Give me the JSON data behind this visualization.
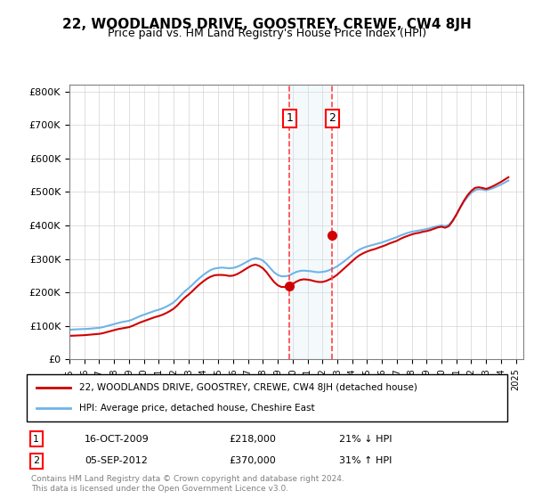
{
  "title": "22, WOODLANDS DRIVE, GOOSTREY, CREWE, CW4 8JH",
  "subtitle": "Price paid vs. HM Land Registry's House Price Index (HPI)",
  "ylabel_ticks": [
    "£0",
    "£100K",
    "£200K",
    "£300K",
    "£400K",
    "£500K",
    "£600K",
    "£700K",
    "£800K"
  ],
  "ytick_values": [
    0,
    100000,
    200000,
    300000,
    400000,
    500000,
    600000,
    700000,
    800000
  ],
  "ylim": [
    0,
    820000
  ],
  "xlim_start": 1995.0,
  "xlim_end": 2025.5,
  "xtick_labels": [
    "1995",
    "1996",
    "1997",
    "1998",
    "1999",
    "2000",
    "2001",
    "2002",
    "2003",
    "2004",
    "2005",
    "2006",
    "2007",
    "2008",
    "2009",
    "2010",
    "2011",
    "2012",
    "2013",
    "2014",
    "2015",
    "2016",
    "2017",
    "2018",
    "2019",
    "2020",
    "2021",
    "2022",
    "2023",
    "2024",
    "2025"
  ],
  "hpi_line_color": "#6eb4e8",
  "price_line_color": "#d00000",
  "marker_color": "#d00000",
  "sale1_date": 2009.79,
  "sale1_price": 218000,
  "sale2_date": 2012.67,
  "sale2_price": 370000,
  "vline1_color": "#ff4444",
  "vline2_color": "#ff4444",
  "shade_color": "#d6e8f7",
  "legend_label1": "22, WOODLANDS DRIVE, GOOSTREY, CREWE, CW4 8JH (detached house)",
  "legend_label2": "HPI: Average price, detached house, Cheshire East",
  "table_row1": [
    "1",
    "16-OCT-2009",
    "£218,000",
    "21% ↓ HPI"
  ],
  "table_row2": [
    "2",
    "05-SEP-2012",
    "£370,000",
    "31% ↑ HPI"
  ],
  "footer": "Contains HM Land Registry data © Crown copyright and database right 2024.\nThis data is licensed under the Open Government Licence v3.0.",
  "hpi_data": {
    "years": [
      1995.0,
      1995.25,
      1995.5,
      1995.75,
      1996.0,
      1996.25,
      1996.5,
      1996.75,
      1997.0,
      1997.25,
      1997.5,
      1997.75,
      1998.0,
      1998.25,
      1998.5,
      1998.75,
      1999.0,
      1999.25,
      1999.5,
      1999.75,
      2000.0,
      2000.25,
      2000.5,
      2000.75,
      2001.0,
      2001.25,
      2001.5,
      2001.75,
      2002.0,
      2002.25,
      2002.5,
      2002.75,
      2003.0,
      2003.25,
      2003.5,
      2003.75,
      2004.0,
      2004.25,
      2004.5,
      2004.75,
      2005.0,
      2005.25,
      2005.5,
      2005.75,
      2006.0,
      2006.25,
      2006.5,
      2006.75,
      2007.0,
      2007.25,
      2007.5,
      2007.75,
      2008.0,
      2008.25,
      2008.5,
      2008.75,
      2009.0,
      2009.25,
      2009.5,
      2009.75,
      2010.0,
      2010.25,
      2010.5,
      2010.75,
      2011.0,
      2011.25,
      2011.5,
      2011.75,
      2012.0,
      2012.25,
      2012.5,
      2012.75,
      2013.0,
      2013.25,
      2013.5,
      2013.75,
      2014.0,
      2014.25,
      2014.5,
      2014.75,
      2015.0,
      2015.25,
      2015.5,
      2015.75,
      2016.0,
      2016.25,
      2016.5,
      2016.75,
      2017.0,
      2017.25,
      2017.5,
      2017.75,
      2018.0,
      2018.25,
      2018.5,
      2018.75,
      2019.0,
      2019.25,
      2019.5,
      2019.75,
      2020.0,
      2020.25,
      2020.5,
      2020.75,
      2021.0,
      2021.25,
      2021.5,
      2021.75,
      2022.0,
      2022.25,
      2022.5,
      2022.75,
      2023.0,
      2023.25,
      2023.5,
      2023.75,
      2024.0,
      2024.25,
      2024.5
    ],
    "values": [
      88000,
      89000,
      89500,
      90000,
      90500,
      91000,
      92000,
      93000,
      94000,
      96000,
      99000,
      102000,
      105000,
      108000,
      111000,
      113000,
      115000,
      119000,
      124000,
      129000,
      133000,
      137000,
      141000,
      145000,
      148000,
      152000,
      157000,
      163000,
      170000,
      180000,
      192000,
      203000,
      212000,
      222000,
      233000,
      243000,
      252000,
      260000,
      267000,
      271000,
      273000,
      274000,
      273000,
      272000,
      273000,
      276000,
      281000,
      287000,
      293000,
      299000,
      302000,
      300000,
      295000,
      285000,
      272000,
      260000,
      252000,
      248000,
      248000,
      250000,
      256000,
      261000,
      264000,
      265000,
      264000,
      263000,
      261000,
      260000,
      261000,
      263000,
      267000,
      272000,
      278000,
      286000,
      294000,
      303000,
      312000,
      321000,
      328000,
      333000,
      337000,
      340000,
      343000,
      346000,
      349000,
      353000,
      357000,
      361000,
      365000,
      370000,
      374000,
      378000,
      381000,
      383000,
      385000,
      387000,
      389000,
      392000,
      395000,
      398000,
      400000,
      398000,
      402000,
      415000,
      432000,
      452000,
      470000,
      485000,
      497000,
      505000,
      508000,
      507000,
      505000,
      508000,
      512000,
      517000,
      522000,
      528000,
      534000
    ]
  },
  "price_data": {
    "years": [
      1995.0,
      1995.25,
      1995.5,
      1995.75,
      1996.0,
      1996.25,
      1996.5,
      1996.75,
      1997.0,
      1997.25,
      1997.5,
      1997.75,
      1998.0,
      1998.25,
      1998.5,
      1998.75,
      1999.0,
      1999.25,
      1999.5,
      1999.75,
      2000.0,
      2000.25,
      2000.5,
      2000.75,
      2001.0,
      2001.25,
      2001.5,
      2001.75,
      2002.0,
      2002.25,
      2002.5,
      2002.75,
      2003.0,
      2003.25,
      2003.5,
      2003.75,
      2004.0,
      2004.25,
      2004.5,
      2004.75,
      2005.0,
      2005.25,
      2005.5,
      2005.75,
      2006.0,
      2006.25,
      2006.5,
      2006.75,
      2007.0,
      2007.25,
      2007.5,
      2007.75,
      2008.0,
      2008.25,
      2008.5,
      2008.75,
      2009.0,
      2009.25,
      2009.5,
      2009.75,
      2010.0,
      2010.25,
      2010.5,
      2010.75,
      2011.0,
      2011.25,
      2011.5,
      2011.75,
      2012.0,
      2012.25,
      2012.5,
      2012.75,
      2013.0,
      2013.25,
      2013.5,
      2013.75,
      2014.0,
      2014.25,
      2014.5,
      2014.75,
      2015.0,
      2015.25,
      2015.5,
      2015.75,
      2016.0,
      2016.25,
      2016.5,
      2016.75,
      2017.0,
      2017.25,
      2017.5,
      2017.75,
      2018.0,
      2018.25,
      2018.5,
      2018.75,
      2019.0,
      2019.25,
      2019.5,
      2019.75,
      2020.0,
      2020.25,
      2020.5,
      2020.75,
      2021.0,
      2021.25,
      2021.5,
      2021.75,
      2022.0,
      2022.25,
      2022.5,
      2022.75,
      2023.0,
      2023.25,
      2023.5,
      2023.75,
      2024.0,
      2024.25,
      2024.5
    ],
    "values": [
      70000,
      70500,
      71000,
      71500,
      72000,
      73000,
      74000,
      75000,
      76000,
      78000,
      81000,
      84000,
      87000,
      90000,
      92000,
      94000,
      96000,
      100000,
      105000,
      110000,
      114000,
      118000,
      122000,
      126000,
      129000,
      133000,
      138000,
      144000,
      151000,
      161000,
      173000,
      184000,
      193000,
      203000,
      214000,
      224000,
      233000,
      241000,
      247000,
      251000,
      252000,
      252000,
      251000,
      249000,
      250000,
      254000,
      260000,
      267000,
      274000,
      280000,
      283000,
      279000,
      272000,
      260000,
      245000,
      231000,
      221000,
      216000,
      216000,
      218000,
      225000,
      232000,
      237000,
      239000,
      238000,
      236000,
      233000,
      231000,
      231000,
      234000,
      239000,
      245000,
      253000,
      263000,
      273000,
      283000,
      293000,
      303000,
      311000,
      317000,
      322000,
      326000,
      329000,
      333000,
      337000,
      341000,
      346000,
      350000,
      354000,
      360000,
      365000,
      369000,
      373000,
      376000,
      378000,
      381000,
      383000,
      386000,
      390000,
      394000,
      396000,
      393000,
      398000,
      413000,
      432000,
      453000,
      473000,
      490000,
      503000,
      512000,
      514000,
      512000,
      509000,
      513000,
      518000,
      524000,
      530000,
      537000,
      544000
    ]
  }
}
